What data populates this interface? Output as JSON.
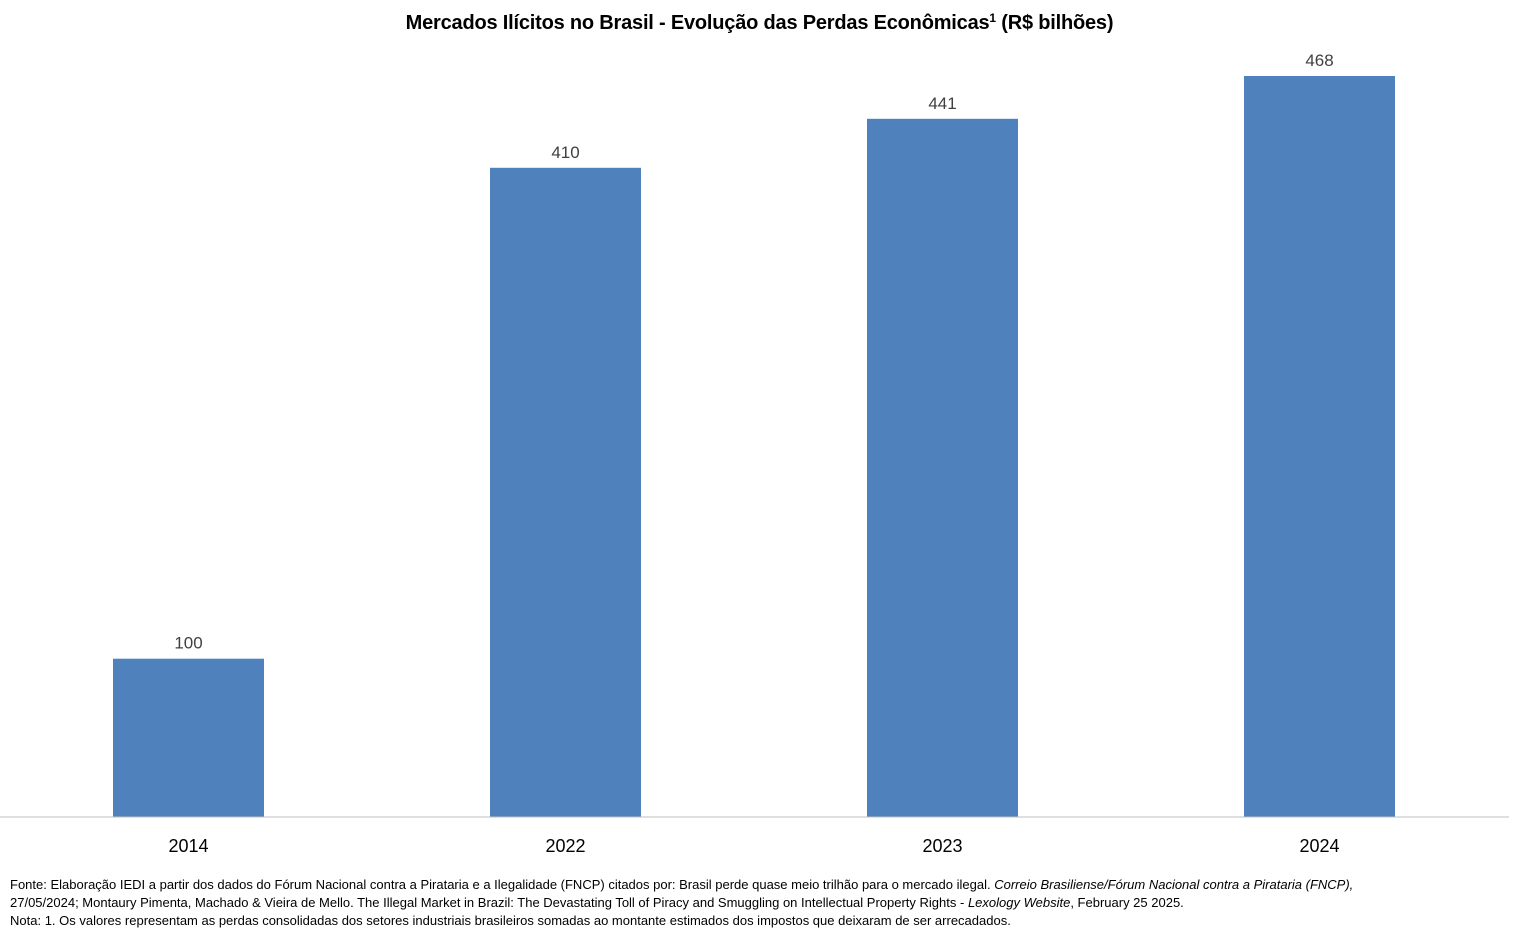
{
  "chart_data": {
    "type": "bar",
    "title": "Mercados Ilícitos no Brasil - Evolução das Perdas Econômicas",
    "title_sup": "1",
    "title_unit": "(R$ bilhões)",
    "categories": [
      "2014",
      "2022",
      "2023",
      "2024"
    ],
    "values": [
      100,
      410,
      441,
      468
    ],
    "data_labels": [
      "100",
      "410",
      "441",
      "468"
    ],
    "bar_color": "#4F81BD",
    "axis_color": "#BFBFBF",
    "ylim": [
      0,
      468
    ],
    "grid": false,
    "legend": "none"
  },
  "footnotes": {
    "source_label": "Fonte:",
    "source_text_1": "Elaboração IEDI a partir dos dados do Fórum Nacional contra a Pirataria e a Ilegalidade (FNCP) citados por: Brasil perde quase meio trilhão para o mercado ilegal.",
    "source_italic_1": "Correio Brasiliense/Fórum Nacional contra a Pirataria (FNCP),",
    "source_text_2": "27/05/2024; Montaury Pimenta, Machado & Vieira de Mello. The Illegal Market in Brazil: The Devastating Toll of Piracy and Smuggling on Intellectual Property Rights -",
    "source_italic_2": "Lexology Website",
    "source_text_3": ", February 25 2025.",
    "note_label": "Nota:",
    "note_text": "1. Os valores representam as perdas consolidadas dos setores industriais brasileiros somadas ao montante estimados dos impostos que deixaram de ser arrecadados."
  }
}
